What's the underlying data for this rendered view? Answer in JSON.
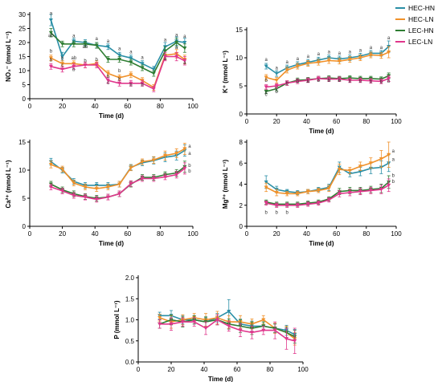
{
  "legend": [
    "HEC-HN",
    "HEC-LN",
    "LEC-HN",
    "LEC-LN"
  ],
  "colors": {
    "HEC-HN": "#2a8fa6",
    "HEC-LN": "#f0912a",
    "LEC-HN": "#2e7d32",
    "LEC-LN": "#e0368c"
  },
  "chart_data": [
    {
      "type": "line",
      "ylabel": "NO₃⁻ (mmol L⁻¹)",
      "xlabel": "Time (d)",
      "xlim": [
        0,
        100
      ],
      "ylim": [
        0,
        30
      ],
      "x_ticks": [
        0,
        20,
        40,
        60,
        80,
        100
      ],
      "y_ticks": [
        0,
        5,
        10,
        15,
        20,
        25,
        30
      ],
      "x": [
        13,
        20,
        27,
        34,
        41,
        48,
        55,
        62,
        69,
        76,
        83,
        90,
        95
      ],
      "series": [
        {
          "name": "HEC-HN",
          "values": [
            28,
            15,
            20.5,
            20,
            19,
            18.5,
            15.5,
            14.5,
            12.5,
            10.5,
            18.5,
            20.5,
            20
          ],
          "err": [
            2,
            1.5,
            1,
            1,
            1,
            1,
            1,
            1,
            1,
            1,
            1.5,
            1.5,
            1.5
          ]
        },
        {
          "name": "HEC-LN",
          "values": [
            14.5,
            12.5,
            12.5,
            12,
            12.5,
            9,
            7.5,
            8.5,
            6.5,
            4,
            15.5,
            16,
            14
          ],
          "err": [
            1,
            1,
            1,
            1,
            1,
            1,
            1,
            1,
            1,
            1,
            1.5,
            1.5,
            1.5
          ]
        },
        {
          "name": "LEC-HN",
          "values": [
            23.5,
            19.5,
            19.5,
            19.5,
            19,
            14,
            14,
            13,
            11,
            9,
            17,
            20,
            18
          ],
          "err": [
            1.5,
            1,
            1,
            1,
            1,
            1,
            1,
            1,
            1,
            1,
            1.5,
            1.5,
            1.5
          ]
        },
        {
          "name": "LEC-LN",
          "values": [
            11.5,
            10.5,
            11.5,
            12,
            12,
            6.5,
            5.5,
            5.5,
            5.5,
            3.5,
            15,
            15,
            13.5
          ],
          "err": [
            1,
            1,
            1,
            1,
            1,
            1,
            1,
            1,
            1,
            1,
            1.5,
            1.5,
            1.5
          ]
        }
      ],
      "letters": [
        {
          "x": 13,
          "y": 29.8,
          "t": "a"
        },
        {
          "x": 13,
          "y": 22,
          "t": "ab"
        },
        {
          "x": 13,
          "y": 16.5,
          "t": "b"
        },
        {
          "x": 13,
          "y": 13.3,
          "t": "b"
        },
        {
          "x": 20,
          "y": 13.8,
          "t": "b"
        },
        {
          "x": 20,
          "y": 11.5,
          "t": "c"
        },
        {
          "x": 27,
          "y": 21.8,
          "t": "a"
        },
        {
          "x": 27,
          "y": 14,
          "t": "ab"
        },
        {
          "x": 27,
          "y": 9.8,
          "t": "b"
        },
        {
          "x": 34,
          "y": 18,
          "t": "ab"
        },
        {
          "x": 34,
          "y": 13,
          "t": "b"
        },
        {
          "x": 41,
          "y": 20.8,
          "t": "a"
        },
        {
          "x": 41,
          "y": 13.5,
          "t": "b"
        },
        {
          "x": 48,
          "y": 20,
          "t": "a"
        },
        {
          "x": 48,
          "y": 7.5,
          "t": "b"
        },
        {
          "x": 48,
          "y": 5.2,
          "t": "c"
        },
        {
          "x": 55,
          "y": 17.3,
          "t": "a"
        },
        {
          "x": 55,
          "y": 9.4,
          "t": "b"
        },
        {
          "x": 55,
          "y": 6.5,
          "t": "b"
        },
        {
          "x": 62,
          "y": 16.2,
          "t": "a"
        },
        {
          "x": 62,
          "y": 4.5,
          "t": "b"
        },
        {
          "x": 69,
          "y": 14.2,
          "t": "a"
        },
        {
          "x": 69,
          "y": 4.5,
          "t": "b"
        },
        {
          "x": 83,
          "y": 20.5,
          "t": "a"
        },
        {
          "x": 83,
          "y": 13.7,
          "t": "a"
        },
        {
          "x": 90,
          "y": 22.2,
          "t": "a"
        },
        {
          "x": 90,
          "y": 17.7,
          "t": "a"
        },
        {
          "x": 95,
          "y": 21.7,
          "t": "a"
        },
        {
          "x": 95,
          "y": 12.3,
          "t": "a"
        }
      ]
    },
    {
      "type": "line",
      "ylabel": "K⁺ (mmol L⁻¹)",
      "xlabel": "Time (d)",
      "xlim": [
        0,
        100
      ],
      "ylim": [
        0,
        15
      ],
      "x_ticks": [
        0,
        20,
        40,
        60,
        80,
        100
      ],
      "y_ticks": [
        0,
        5,
        10,
        15
      ],
      "x": [
        13,
        20,
        27,
        34,
        41,
        48,
        55,
        62,
        69,
        76,
        83,
        90,
        95
      ],
      "series": [
        {
          "name": "HEC-HN",
          "values": [
            8.5,
            7.2,
            8.2,
            8.8,
            9.2,
            9.6,
            10,
            9.8,
            10,
            10.3,
            10.8,
            10.8,
            12
          ],
          "err": [
            0.5,
            0.5,
            0.5,
            0.5,
            0.5,
            0.5,
            0.5,
            0.5,
            0.5,
            0.5,
            0.5,
            0.5,
            1
          ]
        },
        {
          "name": "HEC-LN",
          "values": [
            6.5,
            6,
            7.8,
            8.5,
            9,
            9.2,
            9.5,
            9.4,
            9.7,
            10,
            10.5,
            10.4,
            11
          ],
          "err": [
            0.5,
            0.5,
            0.5,
            0.5,
            0.5,
            0.5,
            0.5,
            0.5,
            0.5,
            0.5,
            0.5,
            0.5,
            1
          ]
        },
        {
          "name": "LEC-HN",
          "values": [
            4,
            4.5,
            5.5,
            6,
            6.1,
            6.3,
            6.4,
            6.3,
            6.4,
            6.3,
            6.3,
            6.2,
            6.8
          ],
          "err": [
            0.4,
            0.4,
            0.4,
            0.4,
            0.4,
            0.4,
            0.4,
            0.4,
            0.4,
            0.4,
            0.4,
            0.4,
            0.5
          ]
        },
        {
          "name": "LEC-LN",
          "values": [
            4.8,
            5,
            5.5,
            5.8,
            6,
            6.3,
            6.2,
            6.2,
            6,
            6,
            5.9,
            5.8,
            6.3
          ],
          "err": [
            0.4,
            0.4,
            0.4,
            0.4,
            0.4,
            0.4,
            0.4,
            0.4,
            0.4,
            0.4,
            0.4,
            0.4,
            0.5
          ]
        }
      ],
      "letters": [
        {
          "x": 13,
          "y": 9.4,
          "t": "a"
        },
        {
          "x": 13,
          "y": 5.7,
          "t": "b"
        },
        {
          "x": 13,
          "y": 3.6,
          "t": "c"
        },
        {
          "x": 13,
          "y": 3.2,
          "t": "c"
        },
        {
          "x": 20,
          "y": 7.9,
          "t": "a"
        },
        {
          "x": 20,
          "y": 3.7,
          "t": "b"
        },
        {
          "x": 27,
          "y": 9,
          "t": "a"
        },
        {
          "x": 27,
          "y": 5.2,
          "t": "b"
        },
        {
          "x": 34,
          "y": 9.6,
          "t": "a"
        },
        {
          "x": 34,
          "y": 5.6,
          "t": "b"
        },
        {
          "x": 41,
          "y": 10,
          "t": "a"
        },
        {
          "x": 41,
          "y": 5.6,
          "t": "b"
        },
        {
          "x": 48,
          "y": 10.4,
          "t": "a"
        },
        {
          "x": 48,
          "y": 5.7,
          "t": "b"
        },
        {
          "x": 55,
          "y": 10.8,
          "t": "a"
        },
        {
          "x": 55,
          "y": 5.7,
          "t": "b"
        },
        {
          "x": 62,
          "y": 10.6,
          "t": "a"
        },
        {
          "x": 62,
          "y": 5.7,
          "t": "b"
        },
        {
          "x": 69,
          "y": 10.8,
          "t": "a"
        },
        {
          "x": 69,
          "y": 5.6,
          "t": "b"
        },
        {
          "x": 76,
          "y": 11.1,
          "t": "a"
        },
        {
          "x": 76,
          "y": 5.6,
          "t": "b"
        },
        {
          "x": 83,
          "y": 11.6,
          "t": "a"
        },
        {
          "x": 83,
          "y": 5.5,
          "t": "b"
        },
        {
          "x": 90,
          "y": 11.6,
          "t": "a"
        },
        {
          "x": 90,
          "y": 5.4,
          "t": "b"
        },
        {
          "x": 95,
          "y": 13.3,
          "t": "a"
        },
        {
          "x": 95,
          "y": 5.6,
          "t": "b"
        }
      ]
    },
    {
      "type": "line",
      "ylabel": "Ca²⁺ (mmol L⁻¹)",
      "xlabel": "Time (d)",
      "xlim": [
        0,
        100
      ],
      "ylim": [
        0,
        15
      ],
      "x_ticks": [
        0,
        20,
        40,
        60,
        80,
        100
      ],
      "y_ticks": [
        0,
        5,
        10,
        15
      ],
      "x": [
        13,
        20,
        27,
        34,
        41,
        48,
        55,
        62,
        69,
        76,
        83,
        90,
        95
      ],
      "series": [
        {
          "name": "HEC-HN",
          "values": [
            11.5,
            10,
            8,
            7.3,
            7.3,
            7.3,
            7.5,
            10.5,
            11.3,
            11.7,
            12.3,
            12.6,
            13.5
          ],
          "err": [
            0.6,
            0.5,
            0.5,
            0.5,
            0.5,
            0.5,
            0.5,
            0.5,
            0.5,
            0.6,
            0.8,
            0.8,
            1
          ]
        },
        {
          "name": "HEC-LN",
          "values": [
            11,
            10.2,
            7.7,
            7,
            6.7,
            7,
            7.5,
            10.4,
            11.5,
            11.8,
            12.6,
            13,
            13.8
          ],
          "err": [
            0.6,
            0.5,
            0.5,
            0.5,
            0.5,
            0.5,
            0.5,
            0.5,
            0.5,
            0.6,
            0.8,
            0.8,
            1
          ]
        },
        {
          "name": "LEC-HN",
          "values": [
            7.5,
            6.5,
            5.8,
            5.3,
            5,
            5.2,
            5.8,
            7.5,
            8.7,
            8.7,
            9.2,
            9.5,
            10.6
          ],
          "err": [
            0.5,
            0.5,
            0.5,
            0.5,
            0.5,
            0.5,
            0.5,
            0.5,
            0.5,
            0.5,
            0.5,
            0.6,
            1
          ]
        },
        {
          "name": "LEC-LN",
          "values": [
            7,
            6.3,
            5.5,
            5.2,
            4.8,
            5.2,
            5.8,
            7.6,
            8.5,
            8.5,
            8.8,
            9.2,
            10.3
          ],
          "err": [
            0.5,
            0.5,
            0.5,
            0.5,
            0.5,
            0.5,
            0.5,
            0.5,
            0.5,
            0.5,
            0.5,
            0.6,
            1
          ]
        }
      ],
      "letters": [
        {
          "x": 98,
          "y": 14,
          "t": "a"
        },
        {
          "x": 98,
          "y": 12.7,
          "t": "a"
        },
        {
          "x": 98,
          "y": 10.6,
          "t": "b"
        },
        {
          "x": 98,
          "y": 9.6,
          "t": "b"
        }
      ]
    },
    {
      "type": "line",
      "ylabel": "Mg²⁺ (mmol L⁻¹)",
      "xlabel": "Time (d)",
      "xlim": [
        0,
        100
      ],
      "ylim": [
        0,
        8
      ],
      "x_ticks": [
        0,
        20,
        40,
        60,
        80,
        100
      ],
      "y_ticks": [
        0,
        2,
        4,
        6,
        8
      ],
      "x": [
        13,
        20,
        27,
        34,
        41,
        48,
        55,
        62,
        69,
        76,
        83,
        90,
        95
      ],
      "series": [
        {
          "name": "HEC-HN",
          "values": [
            4.2,
            3.5,
            3.3,
            3.2,
            3.3,
            3.5,
            3.7,
            5.6,
            5,
            5.2,
            5.5,
            5.6,
            6
          ],
          "err": [
            0.6,
            0.3,
            0.2,
            0.2,
            0.2,
            0.2,
            0.3,
            0.5,
            0.3,
            0.4,
            0.5,
            0.6,
            0.8
          ]
        },
        {
          "name": "HEC-LN",
          "values": [
            3.7,
            3.2,
            3.1,
            3.1,
            3.3,
            3.4,
            3.6,
            5.4,
            5.3,
            5.7,
            6,
            6.4,
            6.8
          ],
          "err": [
            0.4,
            0.3,
            0.2,
            0.2,
            0.2,
            0.2,
            0.3,
            0.5,
            0.3,
            0.4,
            0.5,
            0.8,
            1.2
          ]
        },
        {
          "name": "LEC-HN",
          "values": [
            2.3,
            2.1,
            2.1,
            2.1,
            2.2,
            2.3,
            2.6,
            3.3,
            3.4,
            3.4,
            3.5,
            3.6,
            4.2
          ],
          "err": [
            0.2,
            0.2,
            0.2,
            0.2,
            0.2,
            0.2,
            0.2,
            0.3,
            0.3,
            0.3,
            0.3,
            0.4,
            0.6
          ]
        },
        {
          "name": "LEC-LN",
          "values": [
            2.2,
            2,
            2,
            2,
            2.1,
            2.2,
            2.5,
            3.1,
            3.2,
            3.3,
            3.4,
            3.5,
            3.9
          ],
          "err": [
            0.2,
            0.2,
            0.2,
            0.2,
            0.2,
            0.2,
            0.2,
            0.3,
            0.3,
            0.3,
            0.3,
            0.4,
            0.6
          ]
        }
      ],
      "letters": [
        {
          "x": 13,
          "y": 1.2,
          "t": "b"
        },
        {
          "x": 20,
          "y": 1.2,
          "t": "b"
        },
        {
          "x": 27,
          "y": 1.2,
          "t": "b"
        },
        {
          "x": 98,
          "y": 7,
          "t": "a"
        },
        {
          "x": 98,
          "y": 6.2,
          "t": "a"
        },
        {
          "x": 98,
          "y": 4.7,
          "t": "b"
        },
        {
          "x": 98,
          "y": 4.1,
          "t": "b"
        }
      ]
    },
    {
      "type": "line",
      "ylabel": "P (mmol L⁻¹)",
      "xlabel": "Time (d)",
      "xlim": [
        0,
        100
      ],
      "ylim": [
        0,
        2.0
      ],
      "x_ticks": [
        0,
        20,
        40,
        60,
        80,
        100
      ],
      "y_ticks": [
        "0.0",
        "0.5",
        "1.0",
        "1.5",
        "2.0"
      ],
      "x": [
        13,
        20,
        27,
        34,
        41,
        48,
        55,
        62,
        69,
        76,
        83,
        90,
        95
      ],
      "series": [
        {
          "name": "HEC-HN",
          "values": [
            1.1,
            1.1,
            1.0,
            1.0,
            0.95,
            1.05,
            1.2,
            0.9,
            0.85,
            0.85,
            0.8,
            0.75,
            0.65
          ],
          "err": [
            0.08,
            0.12,
            0.1,
            0.1,
            0.1,
            0.1,
            0.28,
            0.12,
            0.12,
            0.1,
            0.1,
            0.12,
            0.12
          ]
        },
        {
          "name": "HEC-LN",
          "values": [
            1.05,
            0.95,
            1.0,
            1.05,
            1.0,
            1.05,
            0.95,
            0.95,
            0.9,
            1.0,
            0.8,
            0.7,
            0.55
          ],
          "err": [
            0.08,
            0.15,
            0.12,
            0.1,
            0.15,
            0.15,
            0.15,
            0.15,
            0.12,
            0.1,
            0.12,
            0.15,
            0.15
          ]
        },
        {
          "name": "LEC-HN",
          "values": [
            0.9,
            1.0,
            0.95,
            1.0,
            0.95,
            1.0,
            0.9,
            0.85,
            0.8,
            0.85,
            0.8,
            0.7,
            0.6
          ],
          "err": [
            0.1,
            0.12,
            0.12,
            0.1,
            0.12,
            0.12,
            0.12,
            0.15,
            0.15,
            0.1,
            0.1,
            0.12,
            0.15
          ]
        },
        {
          "name": "LEC-LN",
          "values": [
            0.9,
            0.9,
            0.95,
            0.95,
            0.8,
            1.0,
            0.85,
            0.75,
            0.7,
            0.75,
            0.75,
            0.55,
            0.5
          ],
          "err": [
            0.1,
            0.15,
            0.1,
            0.1,
            0.15,
            0.12,
            0.12,
            0.15,
            0.15,
            0.1,
            0.2,
            0.25,
            0.3
          ]
        }
      ],
      "letters": []
    }
  ]
}
